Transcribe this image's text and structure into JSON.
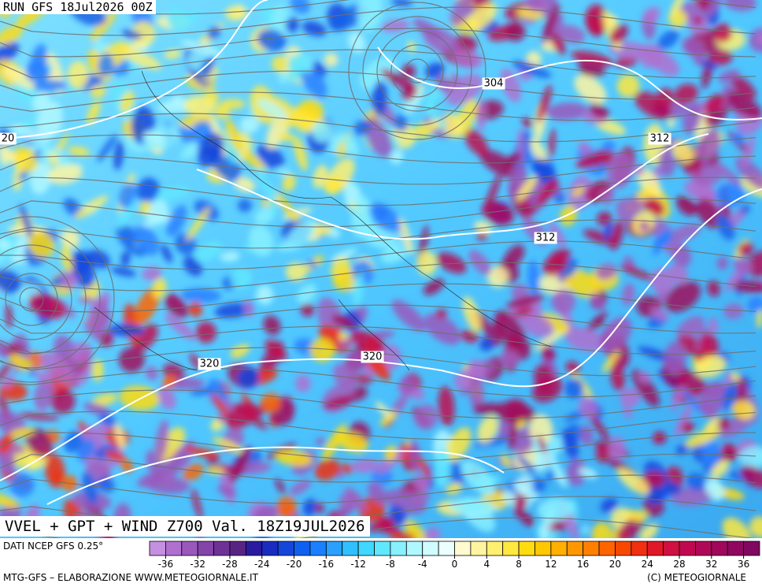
{
  "header": {
    "run": "RUN GFS 18Jul2026 00Z"
  },
  "map": {
    "contour_labels": [
      "304",
      "312",
      "312",
      "320",
      "320",
      "20"
    ]
  },
  "title": "VVEL + GPT + WIND Z700 Val. 18Z19JUL2026",
  "source": "DATI NCEP GFS 0.25°",
  "colorbar": {
    "range": [
      -38,
      38
    ],
    "ticks": [
      -36,
      -32,
      -28,
      -24,
      -20,
      -16,
      -12,
      -8,
      -4,
      0,
      4,
      8,
      12,
      16,
      20,
      24,
      28,
      32,
      36
    ],
    "colors": [
      "#c490e0",
      "#b070d0",
      "#9a58bc",
      "#8444a8",
      "#6e3296",
      "#582484",
      "#2a1aa0",
      "#1a2cc0",
      "#1446dc",
      "#1060f0",
      "#1a80ff",
      "#2aa0ff",
      "#30c0ff",
      "#40d8ff",
      "#60e8ff",
      "#88f0ff",
      "#b0f8ff",
      "#d0fcff",
      "#ecffff",
      "#fffad0",
      "#fff5a0",
      "#fff070",
      "#ffe840",
      "#ffdc10",
      "#ffc800",
      "#ffb000",
      "#ff9800",
      "#ff8000",
      "#ff6400",
      "#f84800",
      "#f03010",
      "#e01828",
      "#d01040",
      "#c00850",
      "#b00858",
      "#a0085c",
      "#900860",
      "#800860"
    ]
  },
  "footer": {
    "left": "MTG-GFS – ELABORAZIONE WWW.METEOGIORNALE.IT",
    "right": "(C) METEOGIORNALE"
  }
}
